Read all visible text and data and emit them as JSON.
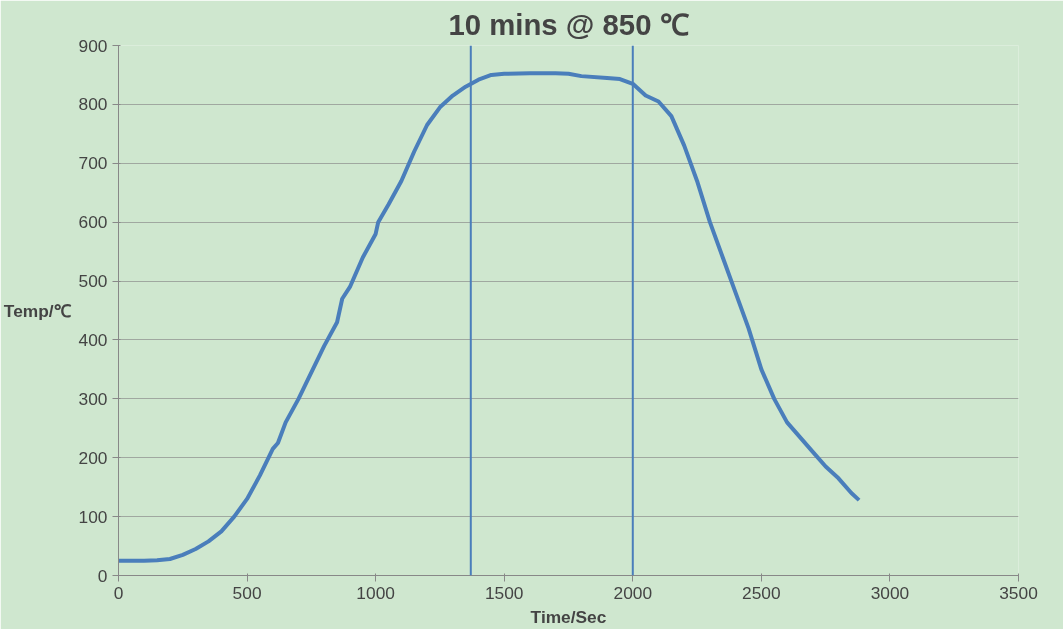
{
  "chart_data": {
    "type": "line",
    "title": "10 mins @ 850 ℃",
    "xlabel": "Time/Sec",
    "ylabel": "Temp/℃",
    "x": [
      0,
      100,
      150,
      200,
      250,
      300,
      350,
      400,
      450,
      500,
      550,
      600,
      620,
      650,
      700,
      750,
      800,
      850,
      870,
      900,
      950,
      1000,
      1010,
      1050,
      1100,
      1150,
      1200,
      1250,
      1300,
      1350,
      1400,
      1450,
      1500,
      1600,
      1700,
      1750,
      1800,
      1900,
      1950,
      2000,
      2050,
      2100,
      2150,
      2200,
      2250,
      2300,
      2350,
      2400,
      2450,
      2500,
      2550,
      2600,
      2650,
      2700,
      2750,
      2800,
      2850,
      2880
    ],
    "series": [
      {
        "color": "#4a7ebb",
        "values": [
          25,
          25,
          26,
          28,
          35,
          45,
          58,
          75,
          100,
          130,
          170,
          215,
          225,
          260,
          300,
          345,
          390,
          430,
          470,
          490,
          540,
          580,
          600,
          630,
          670,
          720,
          765,
          795,
          815,
          830,
          842,
          850,
          852,
          853,
          853,
          852,
          848,
          845,
          843,
          835,
          815,
          805,
          780,
          730,
          670,
          600,
          540,
          480,
          420,
          350,
          300,
          260,
          235,
          210,
          185,
          165,
          140,
          128
        ]
      }
    ],
    "xlim": [
      0,
      3500
    ],
    "xticks": [
      0,
      500,
      1000,
      1500,
      2000,
      2500,
      3000,
      3500
    ],
    "ylim": [
      0,
      900
    ],
    "yticks": [
      0,
      100,
      200,
      300,
      400,
      500,
      600,
      700,
      800,
      900
    ],
    "grid": "y",
    "marker": "none",
    "line_style": "solid",
    "ref_lines": [
      {
        "axis": "x",
        "value": 1370,
        "color": "#4a7ebb"
      },
      {
        "axis": "x",
        "value": 2000,
        "color": "#4a7ebb"
      }
    ]
  }
}
